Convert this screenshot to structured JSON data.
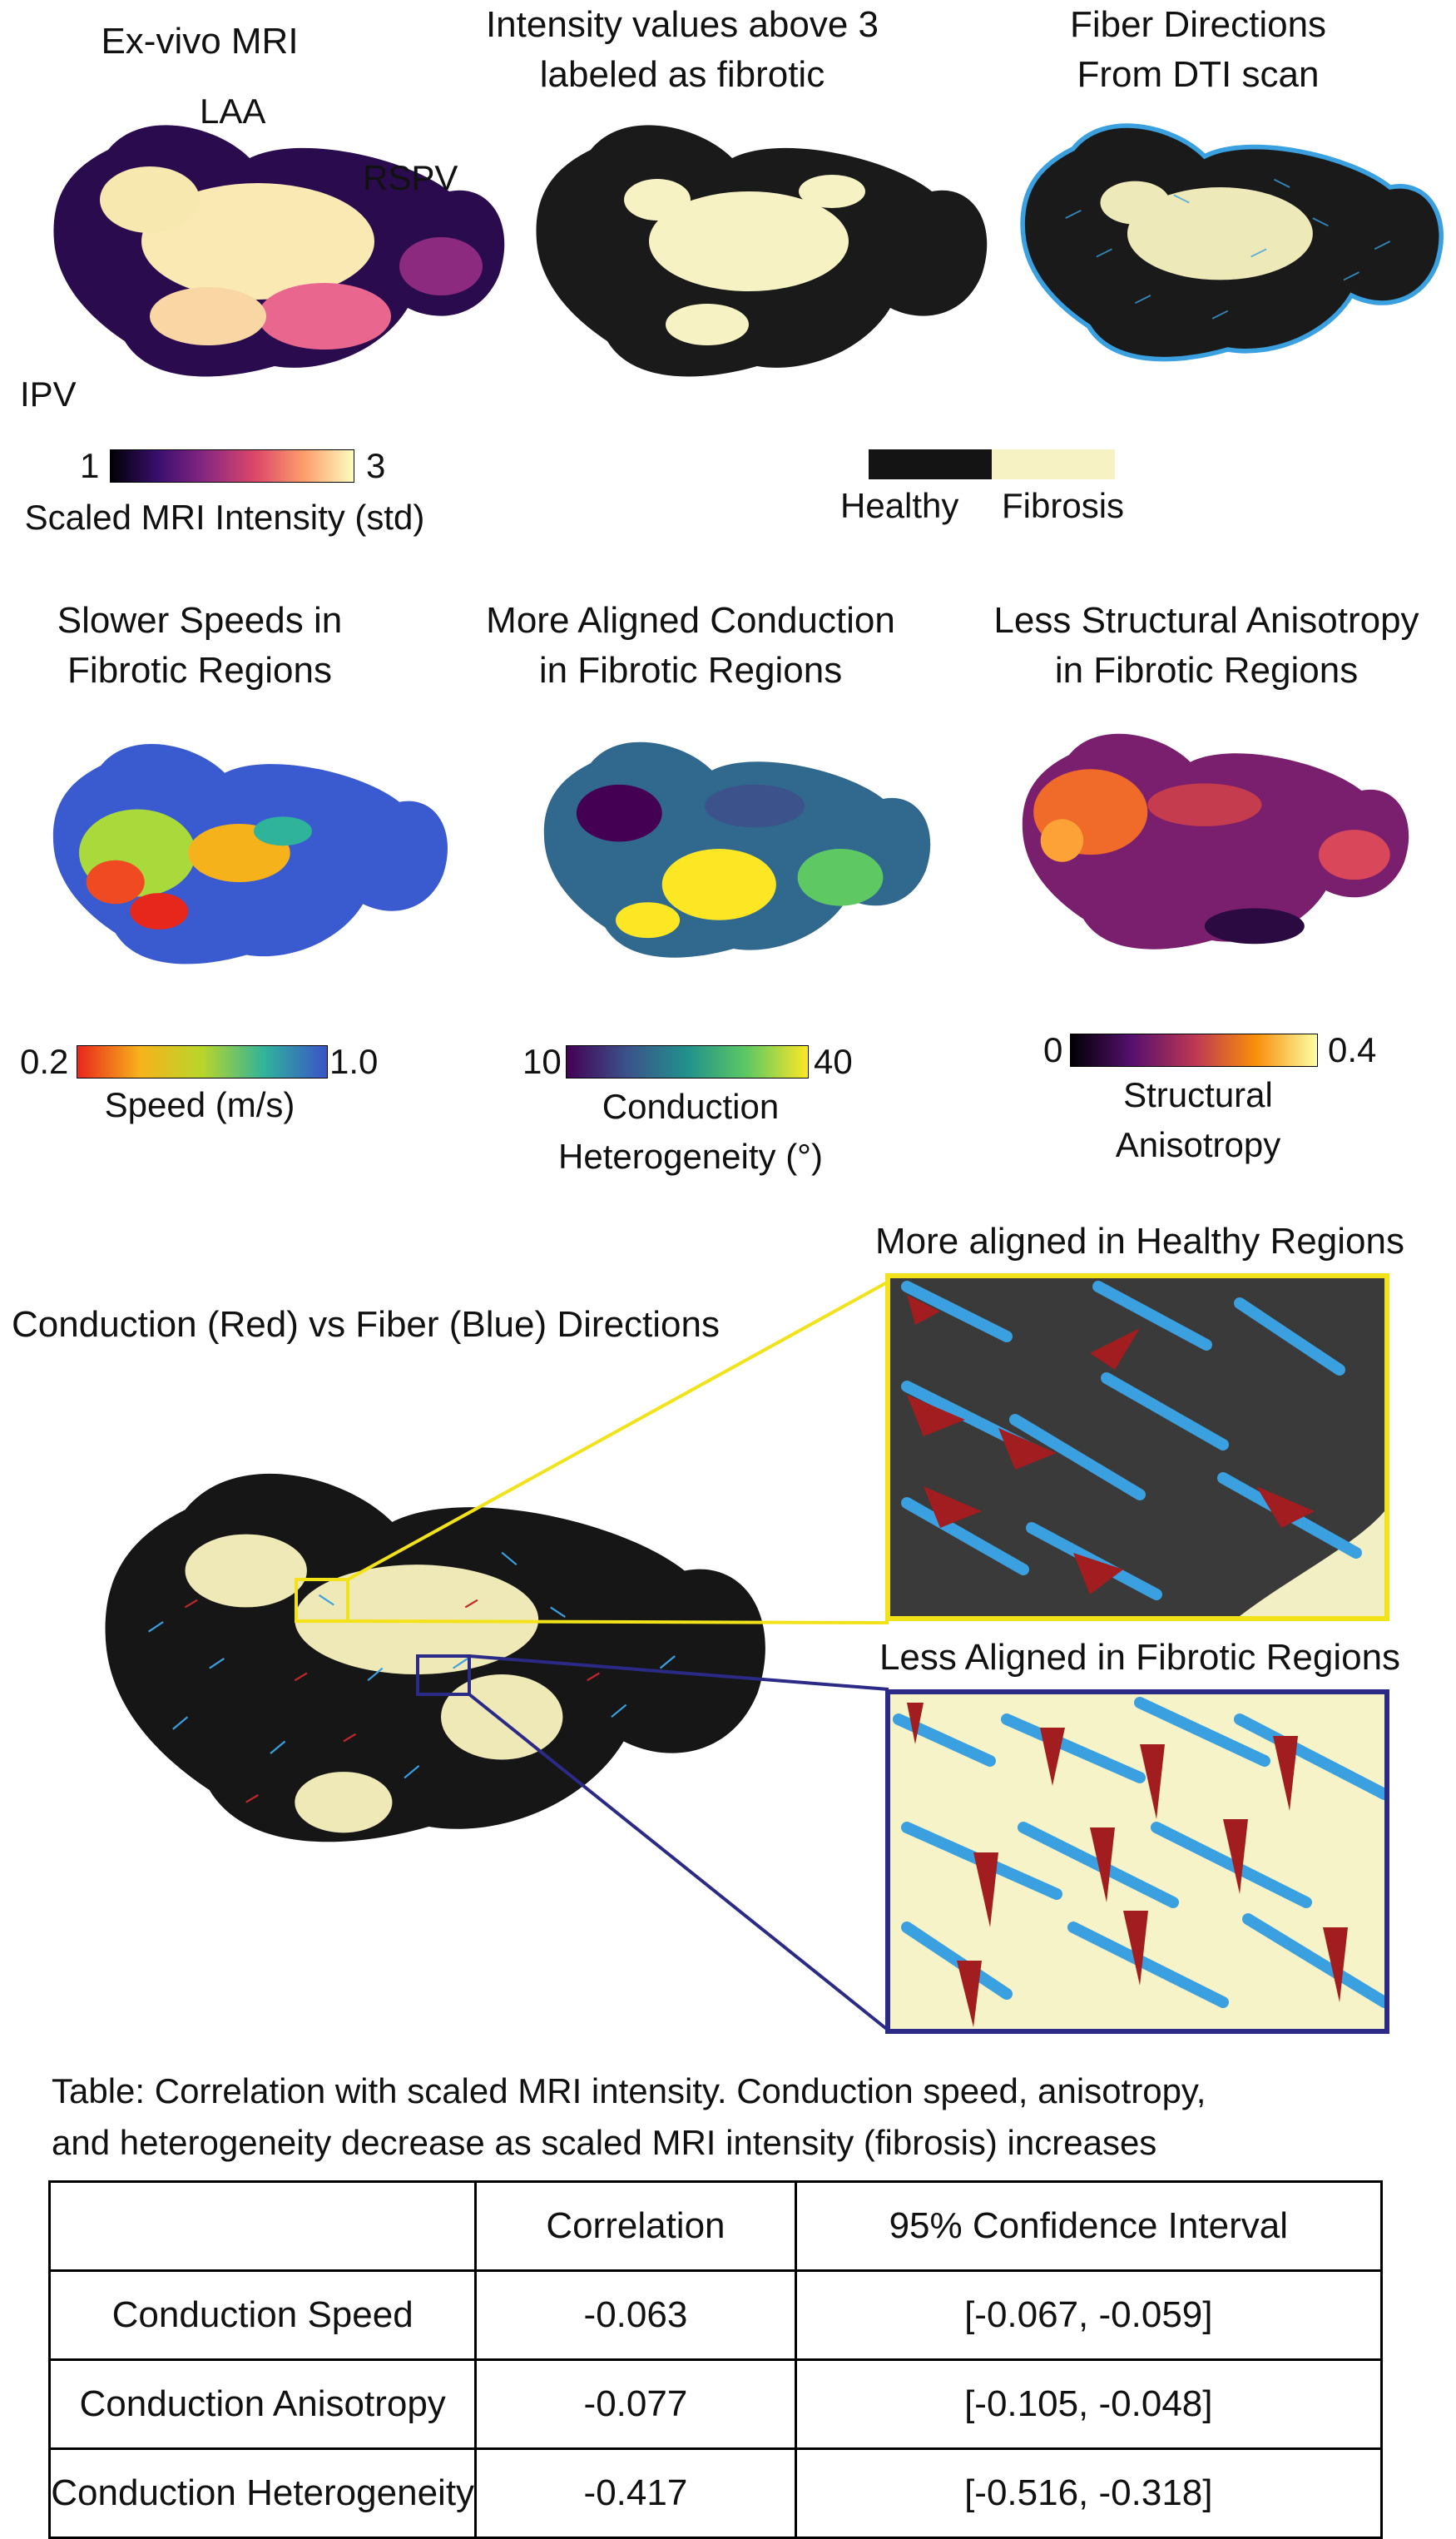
{
  "row1": {
    "panel1": {
      "title": "Ex-vivo MRI",
      "labels": {
        "laa": "LAA",
        "rspv": "RSPV",
        "ipv": "IPV"
      },
      "colorbar": {
        "min": "1",
        "max": "3",
        "name": "Scaled MRI Intensity (std)"
      }
    },
    "panel2": {
      "title_line1": "Intensity values above 3",
      "title_line2": "labeled as fibrotic"
    },
    "panel3": {
      "title_line1": "Fiber Directions",
      "title_line2": "From DTI scan"
    },
    "legend": {
      "healthy": "Healthy",
      "fibrosis": "Fibrosis",
      "healthy_color": "#141414",
      "fibrosis_color": "#f6f2c4"
    }
  },
  "row2": {
    "panel1": {
      "title_line1": "Slower Speeds in",
      "title_line2": "Fibrotic Regions",
      "colorbar": {
        "min": "0.2",
        "max": "1.0",
        "name": "Speed (m/s)"
      }
    },
    "panel2": {
      "title_line1": "More Aligned Conduction",
      "title_line2": "in Fibrotic Regions",
      "colorbar": {
        "min": "10",
        "max": "40",
        "name_line1": "Conduction",
        "name_line2": "Heterogeneity (°)"
      }
    },
    "panel3": {
      "title_line1": "Less Structural Anisotropy",
      "title_line2": "in Fibrotic Regions",
      "colorbar": {
        "min": "0",
        "max": "0.4",
        "name_line1": "Structural",
        "name_line2": "Anisotropy"
      }
    }
  },
  "row3": {
    "title": "Conduction (Red) vs Fiber (Blue) Directions",
    "zoom_healthy": {
      "title": "More aligned in Healthy Regions",
      "frame_color": "#f2e21a"
    },
    "zoom_fibrotic": {
      "title": "Less Aligned in Fibrotic Regions",
      "frame_color": "#2b2a86"
    }
  },
  "table": {
    "caption_line1": "Table: Correlation with scaled MRI intensity. Conduction speed, anisotropy,",
    "caption_line2": "and heterogeneity decrease as scaled MRI intensity (fibrosis) increases",
    "headers": [
      "",
      "Correlation",
      "95% Confidence Interval"
    ],
    "rows": [
      [
        "Conduction Speed",
        "-0.063",
        "[-0.067, -0.059]"
      ],
      [
        "Conduction Anisotropy",
        "-0.077",
        "[-0.105, -0.048]"
      ],
      [
        "Conduction Heterogeneity",
        "-0.417",
        "[-0.516, -0.318]"
      ]
    ]
  }
}
